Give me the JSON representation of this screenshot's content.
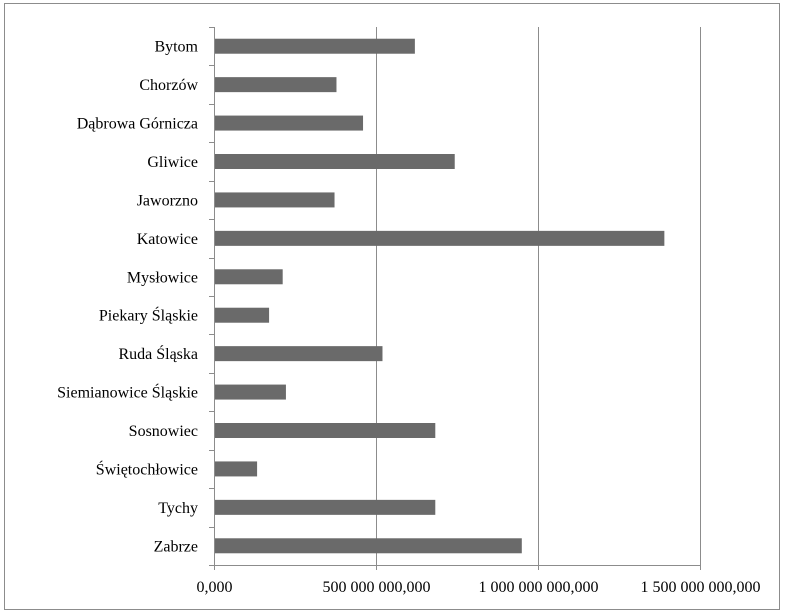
{
  "chart_data": {
    "type": "bar",
    "orientation": "horizontal",
    "title": "",
    "xlabel": "",
    "ylabel": "",
    "categories": [
      "Bytom",
      "Chorzów",
      "Dąbrowa Górnicza",
      "Gliwice",
      "Jaworzno",
      "Katowice",
      "Mysłowice",
      "Piekary Śląskie",
      "Ruda Śląska",
      "Siemianowice Śląskie",
      "Sosnowiec",
      "Świętochłowice",
      "Tychy",
      "Zabrze"
    ],
    "values": [
      620000000,
      378000000,
      460000000,
      743000000,
      372000000,
      1390000000,
      212000000,
      170000000,
      520000000,
      222000000,
      683000000,
      133000000,
      683000000,
      950000000
    ],
    "xlim": [
      0,
      1500000000
    ],
    "xticks": [
      0,
      500000000,
      1000000000,
      1500000000
    ],
    "xtick_labels": [
      "0,000",
      "500 000 000,000",
      "1 000 000 000,000",
      "1 500 000 000,000"
    ],
    "grid": "vertical-major",
    "legend": "none",
    "bar_color": "#6a6a6a",
    "grid_color": "#8c8c8c"
  }
}
